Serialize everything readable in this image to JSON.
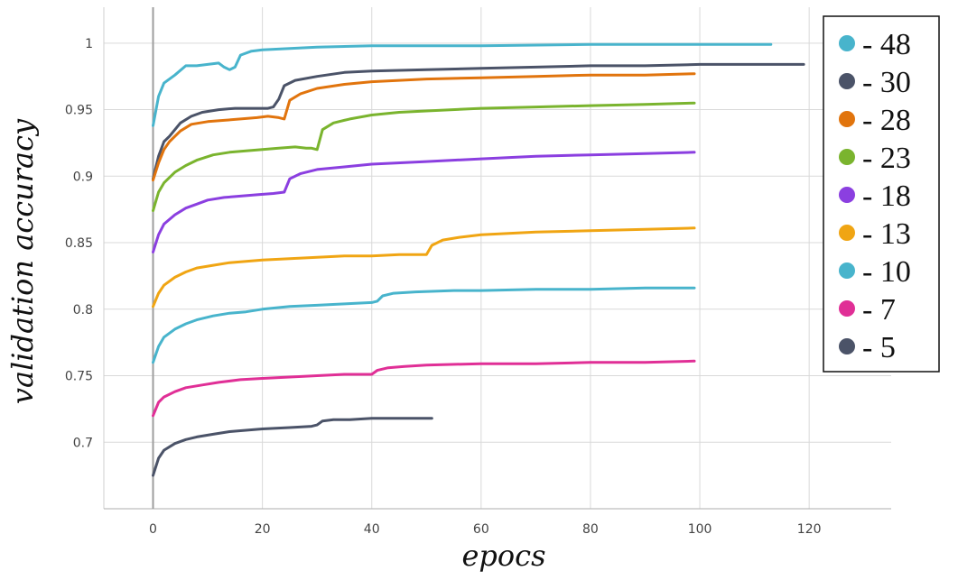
{
  "chart_data": {
    "type": "line",
    "title": "",
    "xlabel": "epocs",
    "ylabel": "validation accuracy",
    "xlim": [
      -9,
      135
    ],
    "ylim": [
      0.65,
      1.027
    ],
    "xticks": [
      0,
      20,
      40,
      60,
      80,
      100,
      120
    ],
    "xtick_labels": [
      "0",
      "20",
      "40",
      "60",
      "80",
      "100",
      "120"
    ],
    "yticks": [
      0.7,
      0.75,
      0.8,
      0.85,
      0.9,
      0.95,
      1
    ],
    "ytick_labels": [
      "0.7",
      "0.75",
      "0.8",
      "0.85",
      "0.9",
      "0.95",
      "1"
    ],
    "grid": true,
    "legend_position": "top-right",
    "series": [
      {
        "name": "- 48",
        "color": "#48b4cc",
        "points": [
          [
            0,
            0.938
          ],
          [
            1,
            0.96
          ],
          [
            2,
            0.97
          ],
          [
            4,
            0.976
          ],
          [
            6,
            0.983
          ],
          [
            8,
            0.983
          ],
          [
            10,
            0.984
          ],
          [
            12,
            0.985
          ],
          [
            13,
            0.982
          ],
          [
            14,
            0.98
          ],
          [
            15,
            0.982
          ],
          [
            16,
            0.991
          ],
          [
            18,
            0.994
          ],
          [
            20,
            0.995
          ],
          [
            25,
            0.996
          ],
          [
            30,
            0.997
          ],
          [
            40,
            0.998
          ],
          [
            60,
            0.998
          ],
          [
            80,
            0.999
          ],
          [
            100,
            0.999
          ],
          [
            113,
            0.999
          ]
        ]
      },
      {
        "name": "- 30",
        "color": "#4b5368",
        "points": [
          [
            0,
            0.898
          ],
          [
            1,
            0.915
          ],
          [
            2,
            0.926
          ],
          [
            3,
            0.93
          ],
          [
            5,
            0.94
          ],
          [
            7,
            0.945
          ],
          [
            9,
            0.948
          ],
          [
            12,
            0.95
          ],
          [
            15,
            0.951
          ],
          [
            18,
            0.951
          ],
          [
            21,
            0.951
          ],
          [
            22,
            0.952
          ],
          [
            23,
            0.958
          ],
          [
            24,
            0.968
          ],
          [
            26,
            0.972
          ],
          [
            30,
            0.975
          ],
          [
            35,
            0.978
          ],
          [
            40,
            0.979
          ],
          [
            50,
            0.98
          ],
          [
            60,
            0.981
          ],
          [
            70,
            0.982
          ],
          [
            80,
            0.983
          ],
          [
            90,
            0.983
          ],
          [
            100,
            0.984
          ],
          [
            110,
            0.984
          ],
          [
            119,
            0.984
          ]
        ]
      },
      {
        "name": "- 28",
        "color": "#e1740d",
        "points": [
          [
            0,
            0.897
          ],
          [
            1,
            0.91
          ],
          [
            2,
            0.92
          ],
          [
            3,
            0.926
          ],
          [
            5,
            0.934
          ],
          [
            7,
            0.939
          ],
          [
            10,
            0.941
          ],
          [
            13,
            0.942
          ],
          [
            16,
            0.943
          ],
          [
            19,
            0.944
          ],
          [
            21,
            0.945
          ],
          [
            23,
            0.944
          ],
          [
            24,
            0.943
          ],
          [
            25,
            0.957
          ],
          [
            27,
            0.962
          ],
          [
            30,
            0.966
          ],
          [
            35,
            0.969
          ],
          [
            40,
            0.971
          ],
          [
            50,
            0.973
          ],
          [
            60,
            0.974
          ],
          [
            70,
            0.975
          ],
          [
            80,
            0.976
          ],
          [
            90,
            0.976
          ],
          [
            99,
            0.977
          ]
        ]
      },
      {
        "name": "- 23",
        "color": "#7ab42e",
        "points": [
          [
            0,
            0.874
          ],
          [
            1,
            0.888
          ],
          [
            2,
            0.895
          ],
          [
            4,
            0.903
          ],
          [
            6,
            0.908
          ],
          [
            8,
            0.912
          ],
          [
            11,
            0.916
          ],
          [
            14,
            0.918
          ],
          [
            17,
            0.919
          ],
          [
            20,
            0.92
          ],
          [
            23,
            0.921
          ],
          [
            26,
            0.922
          ],
          [
            28,
            0.921
          ],
          [
            29,
            0.921
          ],
          [
            30,
            0.92
          ],
          [
            31,
            0.935
          ],
          [
            33,
            0.94
          ],
          [
            36,
            0.943
          ],
          [
            40,
            0.946
          ],
          [
            45,
            0.948
          ],
          [
            50,
            0.949
          ],
          [
            60,
            0.951
          ],
          [
            70,
            0.952
          ],
          [
            80,
            0.953
          ],
          [
            90,
            0.954
          ],
          [
            99,
            0.955
          ]
        ]
      },
      {
        "name": "- 18",
        "color": "#8b3fe0",
        "points": [
          [
            0,
            0.843
          ],
          [
            1,
            0.856
          ],
          [
            2,
            0.864
          ],
          [
            4,
            0.871
          ],
          [
            6,
            0.876
          ],
          [
            8,
            0.879
          ],
          [
            10,
            0.882
          ],
          [
            13,
            0.884
          ],
          [
            16,
            0.885
          ],
          [
            19,
            0.886
          ],
          [
            22,
            0.887
          ],
          [
            24,
            0.888
          ],
          [
            25,
            0.898
          ],
          [
            27,
            0.902
          ],
          [
            30,
            0.905
          ],
          [
            35,
            0.907
          ],
          [
            40,
            0.909
          ],
          [
            50,
            0.911
          ],
          [
            60,
            0.913
          ],
          [
            70,
            0.915
          ],
          [
            80,
            0.916
          ],
          [
            90,
            0.917
          ],
          [
            99,
            0.918
          ]
        ]
      },
      {
        "name": "- 13",
        "color": "#f0a513",
        "points": [
          [
            0,
            0.802
          ],
          [
            1,
            0.812
          ],
          [
            2,
            0.818
          ],
          [
            4,
            0.824
          ],
          [
            6,
            0.828
          ],
          [
            8,
            0.831
          ],
          [
            11,
            0.833
          ],
          [
            14,
            0.835
          ],
          [
            17,
            0.836
          ],
          [
            20,
            0.837
          ],
          [
            25,
            0.838
          ],
          [
            30,
            0.839
          ],
          [
            35,
            0.84
          ],
          [
            40,
            0.84
          ],
          [
            45,
            0.841
          ],
          [
            50,
            0.841
          ],
          [
            51,
            0.848
          ],
          [
            53,
            0.852
          ],
          [
            56,
            0.854
          ],
          [
            60,
            0.856
          ],
          [
            70,
            0.858
          ],
          [
            80,
            0.859
          ],
          [
            90,
            0.86
          ],
          [
            99,
            0.861
          ]
        ]
      },
      {
        "name": "- 10",
        "color": "#48b4cc",
        "points": [
          [
            0,
            0.76
          ],
          [
            1,
            0.772
          ],
          [
            2,
            0.779
          ],
          [
            4,
            0.785
          ],
          [
            6,
            0.789
          ],
          [
            8,
            0.792
          ],
          [
            11,
            0.795
          ],
          [
            14,
            0.797
          ],
          [
            17,
            0.798
          ],
          [
            20,
            0.8
          ],
          [
            25,
            0.802
          ],
          [
            30,
            0.803
          ],
          [
            35,
            0.804
          ],
          [
            40,
            0.805
          ],
          [
            41,
            0.806
          ],
          [
            42,
            0.81
          ],
          [
            44,
            0.812
          ],
          [
            48,
            0.813
          ],
          [
            55,
            0.814
          ],
          [
            60,
            0.814
          ],
          [
            70,
            0.815
          ],
          [
            80,
            0.815
          ],
          [
            90,
            0.816
          ],
          [
            99,
            0.816
          ]
        ]
      },
      {
        "name": "- 7",
        "color": "#e02f96",
        "points": [
          [
            0,
            0.72
          ],
          [
            1,
            0.73
          ],
          [
            2,
            0.734
          ],
          [
            4,
            0.738
          ],
          [
            6,
            0.741
          ],
          [
            9,
            0.743
          ],
          [
            12,
            0.745
          ],
          [
            16,
            0.747
          ],
          [
            20,
            0.748
          ],
          [
            25,
            0.749
          ],
          [
            30,
            0.75
          ],
          [
            35,
            0.751
          ],
          [
            40,
            0.751
          ],
          [
            41,
            0.754
          ],
          [
            43,
            0.756
          ],
          [
            46,
            0.757
          ],
          [
            50,
            0.758
          ],
          [
            60,
            0.759
          ],
          [
            70,
            0.759
          ],
          [
            80,
            0.76
          ],
          [
            90,
            0.76
          ],
          [
            99,
            0.761
          ]
        ]
      },
      {
        "name": "- 5",
        "color": "#4b5368",
        "points": [
          [
            0,
            0.675
          ],
          [
            1,
            0.688
          ],
          [
            2,
            0.694
          ],
          [
            4,
            0.699
          ],
          [
            6,
            0.702
          ],
          [
            8,
            0.704
          ],
          [
            11,
            0.706
          ],
          [
            14,
            0.708
          ],
          [
            17,
            0.709
          ],
          [
            20,
            0.71
          ],
          [
            25,
            0.711
          ],
          [
            29,
            0.712
          ],
          [
            30,
            0.713
          ],
          [
            31,
            0.716
          ],
          [
            33,
            0.717
          ],
          [
            36,
            0.717
          ],
          [
            40,
            0.718
          ],
          [
            45,
            0.718
          ],
          [
            51,
            0.718
          ]
        ]
      }
    ]
  }
}
